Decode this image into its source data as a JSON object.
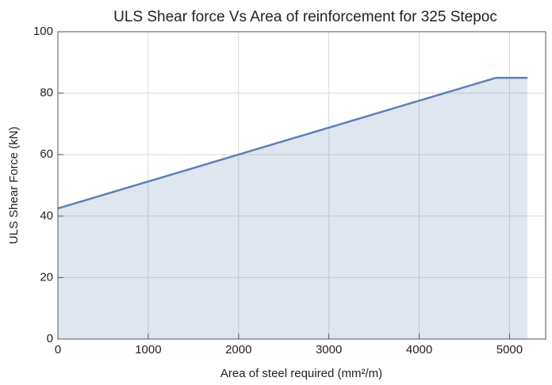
{
  "chart_data": {
    "type": "line",
    "title": "ULS Shear force Vs Area of reinforcement for 325 Stepoc",
    "x_label": "Area of steel required (mm²/m)",
    "y_label": "ULS Shear Force (kN)",
    "x": [
      0,
      4850,
      5200
    ],
    "series": [
      {
        "color": "#5e81b5",
        "values": [
          42.5,
          85,
          85
        ]
      }
    ],
    "filled": true,
    "xlim": [
      0,
      5400
    ],
    "ylim": [
      0,
      100
    ],
    "xticks": [
      0,
      1000,
      2000,
      3000,
      4000,
      5000
    ],
    "yticks": [
      0,
      20,
      40,
      60,
      80,
      100
    ],
    "grid": true
  }
}
